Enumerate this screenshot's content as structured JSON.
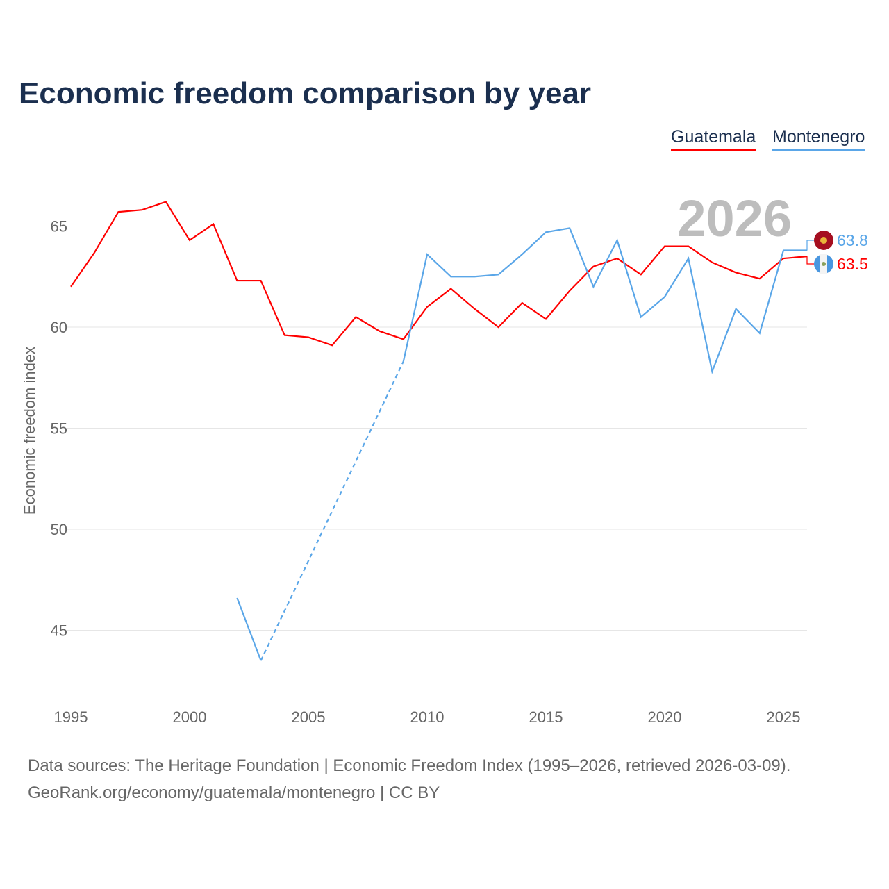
{
  "chart_data": {
    "type": "line",
    "title": "Economic freedom comparison by year",
    "ylabel": "Economic freedom index",
    "xlabel": "",
    "xlim": [
      1995,
      2026
    ],
    "ylim": [
      42,
      68
    ],
    "xticks": [
      "1995",
      "2000",
      "2005",
      "2010",
      "2015",
      "2020",
      "2025"
    ],
    "yticks": [
      "45",
      "50",
      "55",
      "60",
      "65"
    ],
    "year_label": "2026",
    "legend_position": "top-right",
    "series": [
      {
        "name": "Guatemala",
        "color": "#ff0000",
        "end_label": "63.5",
        "x": [
          1995,
          1996,
          1997,
          1998,
          1999,
          2000,
          2001,
          2002,
          2003,
          2004,
          2005,
          2006,
          2007,
          2008,
          2009,
          2010,
          2011,
          2012,
          2013,
          2014,
          2015,
          2016,
          2017,
          2018,
          2019,
          2020,
          2021,
          2022,
          2023,
          2024,
          2025,
          2026
        ],
        "values": [
          62.0,
          63.7,
          65.7,
          65.8,
          66.2,
          64.3,
          65.1,
          62.3,
          62.3,
          59.6,
          59.5,
          59.1,
          60.5,
          59.8,
          59.4,
          61.0,
          61.9,
          60.9,
          60.0,
          61.2,
          60.4,
          61.8,
          63.0,
          63.4,
          62.6,
          64.0,
          64.0,
          63.2,
          62.7,
          62.4,
          63.4,
          63.5
        ]
      },
      {
        "name": "Montenegro",
        "color": "#5aa6e8",
        "end_label": "63.8",
        "x": [
          2002,
          2003,
          2009,
          2010,
          2011,
          2012,
          2013,
          2014,
          2015,
          2016,
          2017,
          2018,
          2019,
          2020,
          2021,
          2022,
          2023,
          2024,
          2025,
          2026
        ],
        "values": [
          46.6,
          43.5,
          58.3,
          63.6,
          62.5,
          62.5,
          62.6,
          63.6,
          64.7,
          64.9,
          62.0,
          64.3,
          60.5,
          61.5,
          63.4,
          57.8,
          60.9,
          59.7,
          63.8,
          63.8
        ],
        "gap_dashed": [
          2003,
          2009
        ]
      }
    ]
  },
  "footer": {
    "line1": "Data sources: The Heritage Foundation | Economic Freedom Index (1995–2026, retrieved 2026-03-09).",
    "line2": "GeoRank.org/economy/guatemala/montenegro | CC BY"
  }
}
